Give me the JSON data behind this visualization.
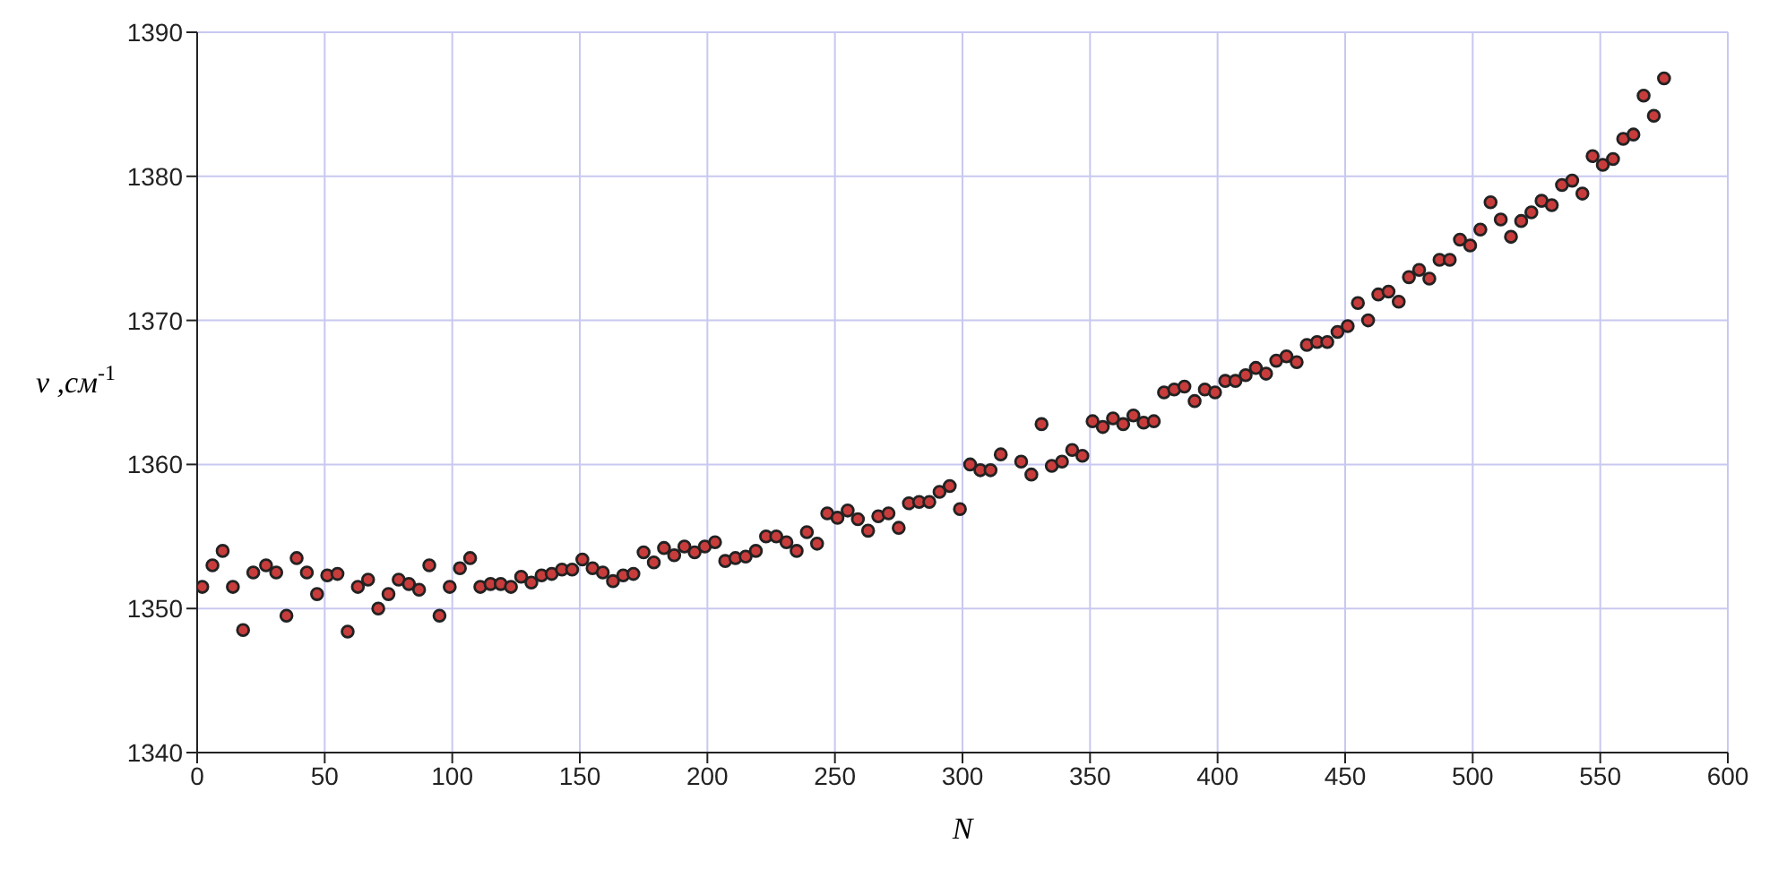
{
  "chart_data": {
    "type": "scatter",
    "xlabel": "N",
    "ylabel": "ν ,см$^{-1}$",
    "xlim": [
      0,
      600
    ],
    "xticks": [
      0,
      50,
      100,
      150,
      200,
      250,
      300,
      350,
      400,
      450,
      500,
      550,
      600
    ],
    "ylim": [
      1340,
      1390
    ],
    "yticks": [
      1340,
      1350,
      1360,
      1370,
      1380,
      1390
    ],
    "grid": true,
    "marker": "circle",
    "series": [
      {
        "color": "#c83c3c",
        "x": [
          2,
          6,
          10,
          14,
          18,
          22,
          27,
          31,
          35,
          39,
          43,
          47,
          51,
          55,
          59,
          63,
          67,
          71,
          75,
          79,
          83,
          87,
          91,
          95,
          99,
          103,
          107,
          111,
          115,
          119,
          123,
          127,
          131,
          135,
          139,
          143,
          147,
          151,
          155,
          159,
          163,
          167,
          171,
          175,
          179,
          183,
          187,
          191,
          195,
          199,
          203,
          207,
          211,
          215,
          219,
          223,
          227,
          231,
          235,
          239,
          243,
          247,
          251,
          255,
          259,
          263,
          267,
          271,
          275,
          279,
          283,
          287,
          291,
          295,
          299,
          303,
          307,
          311,
          315,
          323,
          327,
          331,
          335,
          339,
          343,
          347,
          351,
          355,
          359,
          363,
          367,
          371,
          375,
          379,
          383,
          387,
          391,
          395,
          399,
          403,
          407,
          411,
          415,
          419,
          423,
          427,
          431,
          435,
          439,
          443,
          447,
          451,
          455,
          459,
          463,
          467,
          471,
          475,
          479,
          483,
          487,
          491,
          495,
          499,
          503,
          507,
          511,
          515,
          519,
          523,
          527,
          531,
          535,
          539,
          543,
          547,
          551,
          555,
          559,
          563,
          567,
          571,
          575
        ],
        "values": [
          1351.5,
          1353,
          1354,
          1351.5,
          1348.5,
          1352.5,
          1353,
          1352.5,
          1349.5,
          1353.5,
          1352.5,
          1351,
          1352.3,
          1352.4,
          1348.4,
          1351.5,
          1352,
          1350,
          1351,
          1352,
          1351.7,
          1351.3,
          1353,
          1349.5,
          1351.5,
          1352.8,
          1353.5,
          1351.5,
          1351.7,
          1351.7,
          1351.5,
          1352.2,
          1351.8,
          1352.3,
          1352.4,
          1352.7,
          1352.7,
          1353.4,
          1352.8,
          1352.5,
          1351.9,
          1352.3,
          1352.4,
          1353.9,
          1353.2,
          1354.2,
          1353.7,
          1354.3,
          1353.9,
          1354.3,
          1354.6,
          1353.3,
          1353.5,
          1353.6,
          1354,
          1355,
          1355,
          1354.6,
          1354,
          1355.3,
          1354.5,
          1356.6,
          1356.3,
          1356.8,
          1356.2,
          1355.4,
          1356.4,
          1356.6,
          1355.6,
          1357.3,
          1357.4,
          1357.4,
          1358.1,
          1358.5,
          1356.9,
          1360,
          1359.6,
          1359.6,
          1360.7,
          1360.2,
          1359.3,
          1362.8,
          1359.9,
          1360.2,
          1361,
          1360.6,
          1363,
          1362.6,
          1363.2,
          1362.8,
          1363.4,
          1362.9,
          1363,
          1365,
          1365.2,
          1365.4,
          1364.4,
          1365.2,
          1365,
          1365.8,
          1365.8,
          1366.2,
          1366.7,
          1366.3,
          1367.2,
          1367.5,
          1367.1,
          1368.3,
          1368.5,
          1368.5,
          1369.2,
          1369.6,
          1371.2,
          1370,
          1371.8,
          1372,
          1371.3,
          1373,
          1373.5,
          1372.9,
          1374.2,
          1374.2,
          1375.6,
          1375.2,
          1376.3,
          1378.2,
          1377,
          1375.8,
          1376.9,
          1377.5,
          1378.3,
          1378,
          1379.4,
          1379.7,
          1378.8,
          1381.4,
          1380.8,
          1381.2,
          1382.6,
          1382.9,
          1385.6,
          1384.2,
          1386.8
        ]
      }
    ]
  }
}
